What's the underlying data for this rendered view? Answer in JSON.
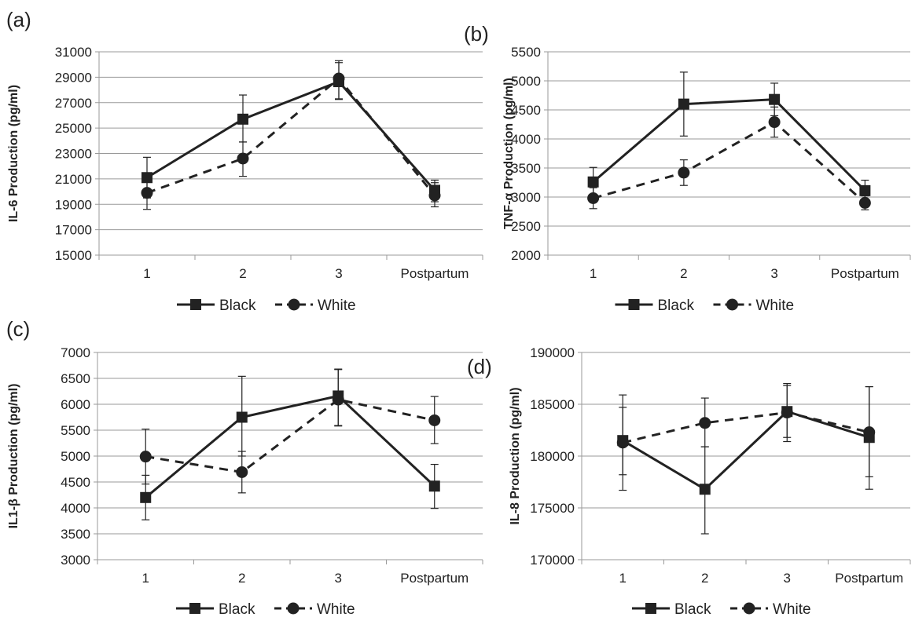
{
  "figure": {
    "series_styles": [
      {
        "name": "Black",
        "marker": "square",
        "dash": "solid",
        "color": "#222222"
      },
      {
        "name": "White",
        "marker": "circle",
        "dash": "dashed",
        "color": "#222222"
      }
    ],
    "grid_color": "#9a9a9a"
  },
  "chart_data": [
    {
      "panel_label": "(a)",
      "type": "line",
      "title": "",
      "xlabel": "",
      "ylabel": "IL-6 Production (pg/ml)",
      "categories": [
        "1",
        "2",
        "3",
        "Postpartum"
      ],
      "ylim": [
        15000,
        31000
      ],
      "yticks": [
        15000,
        17000,
        19000,
        21000,
        23000,
        25000,
        27000,
        29000,
        31000
      ],
      "ytick_labels": [
        "15000",
        "17000",
        "19000",
        "21000",
        "23000",
        "25000",
        "27000",
        "29000",
        "31000"
      ],
      "grid": true,
      "legend_position": "bottom",
      "series": [
        {
          "name": "Black",
          "values": [
            21100,
            25700,
            28650,
            20100
          ],
          "err_low": [
            1600,
            1800,
            1400,
            900
          ],
          "err_high": [
            1600,
            1900,
            1500,
            800
          ]
        },
        {
          "name": "White",
          "values": [
            19900,
            22600,
            28900,
            19700
          ],
          "err_low": [
            1300,
            1400,
            1600,
            900
          ],
          "err_high": [
            1200,
            1300,
            1400,
            1000
          ]
        }
      ]
    },
    {
      "panel_label": "(b)",
      "type": "line",
      "title": "",
      "xlabel": "",
      "ylabel": "TNF-α Production (pg/ml)",
      "categories": [
        "1",
        "2",
        "3",
        "Postpartum"
      ],
      "ylim": [
        2000,
        5500
      ],
      "yticks": [
        2000,
        2500,
        3000,
        3500,
        4000,
        4500,
        5000,
        5500
      ],
      "ytick_labels": [
        "2000",
        "2500",
        "3000",
        "3500",
        "4000",
        "4500",
        "5000",
        "5500"
      ],
      "grid": true,
      "legend_position": "bottom",
      "series": [
        {
          "name": "Black",
          "values": [
            3260,
            4600,
            4680,
            3110
          ],
          "err_low": [
            250,
            550,
            280,
            180
          ],
          "err_high": [
            250,
            550,
            280,
            180
          ]
        },
        {
          "name": "White",
          "values": [
            2980,
            3420,
            4290,
            2900
          ],
          "err_low": [
            180,
            220,
            260,
            120
          ],
          "err_high": [
            180,
            220,
            260,
            120
          ]
        }
      ]
    },
    {
      "panel_label": "(c)",
      "type": "line",
      "title": "",
      "xlabel": "",
      "ylabel": "IL1-β Production (pg/ml)",
      "categories": [
        "1",
        "2",
        "3",
        "Postpartum"
      ],
      "ylim": [
        3000,
        7000
      ],
      "yticks": [
        3000,
        3500,
        4000,
        4500,
        5000,
        5500,
        6000,
        6500,
        7000
      ],
      "ytick_labels": [
        "3000",
        "3500",
        "4000",
        "4500",
        "5000",
        "5500",
        "6000",
        "6500",
        "7000"
      ],
      "grid": true,
      "legend_position": "bottom",
      "series": [
        {
          "name": "Black",
          "values": [
            4200,
            5750,
            6160,
            4420
          ],
          "err_low": [
            430,
            750,
            580,
            430
          ],
          "err_high": [
            430,
            790,
            520,
            420
          ]
        },
        {
          "name": "White",
          "values": [
            4990,
            4690,
            6090,
            5690
          ],
          "err_low": [
            530,
            400,
            500,
            450
          ],
          "err_high": [
            530,
            400,
            580,
            460
          ]
        }
      ]
    },
    {
      "panel_label": "(d)",
      "type": "line",
      "title": "",
      "xlabel": "",
      "ylabel": "IL-8 Production (pg/ml)",
      "categories": [
        "1",
        "2",
        "3",
        "Postpartum"
      ],
      "ylim": [
        170000,
        190000
      ],
      "yticks": [
        170000,
        175000,
        180000,
        185000,
        190000
      ],
      "ytick_labels": [
        "170000",
        "175000",
        "180000",
        "185000",
        "190000"
      ],
      "grid": true,
      "legend_position": "bottom",
      "series": [
        {
          "name": "Black",
          "values": [
            181500,
            176800,
            184300,
            181800
          ],
          "err_low": [
            4800,
            4300,
            2500,
            5000
          ],
          "err_high": [
            4400,
            4100,
            2700,
            4900
          ]
        },
        {
          "name": "White",
          "values": [
            181300,
            183200,
            184200,
            182300
          ],
          "err_low": [
            3100,
            2300,
            2800,
            4300
          ],
          "err_high": [
            3400,
            2400,
            2600,
            4400
          ]
        }
      ]
    }
  ]
}
